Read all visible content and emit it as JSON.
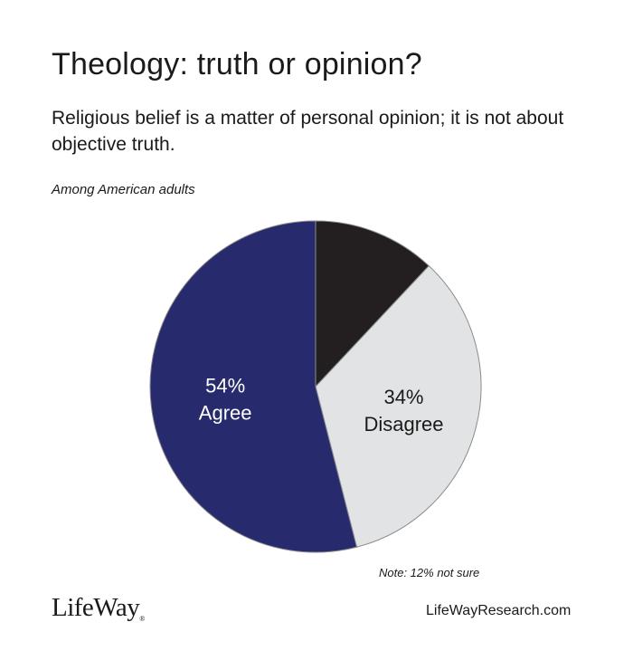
{
  "header": {
    "title": "Theology: truth or opinion?",
    "subtitle": "Religious belief is a matter of personal opinion; it is not about objective truth.",
    "population": "Among American adults"
  },
  "chart_data": {
    "type": "pie",
    "start_angle_deg": 0,
    "direction": "clockwise",
    "slices": [
      {
        "name": "Not sure",
        "value": 12,
        "color": "#231f20",
        "pct_label": "",
        "text_label": ""
      },
      {
        "name": "Disagree",
        "value": 34,
        "color": "#e2e3e5",
        "pct_label": "34%",
        "text_label": "Disagree"
      },
      {
        "name": "Agree",
        "value": 54,
        "color": "#272b6d",
        "pct_label": "54%",
        "text_label": "Agree"
      }
    ],
    "note": "Note: 12% not sure"
  },
  "footer": {
    "logo_text": "LifeWay",
    "logo_mark": "®",
    "website": "LifeWayResearch.com"
  },
  "colors": {
    "agree": "#272b6d",
    "disagree": "#e2e3e5",
    "not_sure": "#231f20",
    "outline": "#8c8c8c"
  }
}
